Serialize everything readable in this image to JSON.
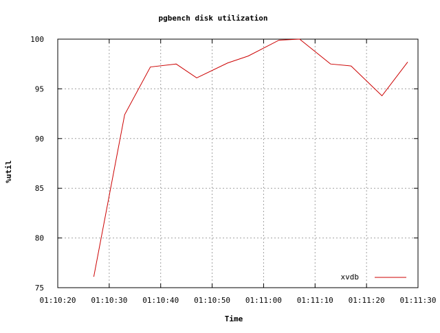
{
  "chart_data": {
    "type": "line",
    "title": "pgbench disk utilization",
    "xlabel": "Time",
    "ylabel": "%util",
    "x_tick_labels": [
      "01:10:20",
      "01:10:30",
      "01:10:40",
      "01:10:50",
      "01:11:00",
      "01:11:10",
      "01:11:20",
      "01:11:30"
    ],
    "y_tick_labels": [
      "75",
      "80",
      "85",
      "90",
      "95",
      "100"
    ],
    "x_ticks_seconds": [
      0,
      10,
      20,
      30,
      40,
      50,
      60,
      70
    ],
    "y_ticks": [
      75,
      80,
      85,
      90,
      95,
      100
    ],
    "xlim": [
      "01:10:20",
      "01:11:30"
    ],
    "ylim": [
      75,
      100
    ],
    "grid": true,
    "legend_position": "bottom-right",
    "series": [
      {
        "name": "xvdb",
        "color": "#cc0000",
        "x": [
          "01:10:27",
          "01:10:33",
          "01:10:38",
          "01:10:43",
          "01:10:47",
          "01:10:53",
          "01:10:57",
          "01:11:03",
          "01:11:07",
          "01:11:13",
          "01:11:17",
          "01:11:23",
          "01:11:28"
        ],
        "y": [
          76.1,
          92.4,
          97.2,
          97.5,
          96.1,
          97.6,
          98.3,
          99.9,
          100.0,
          97.5,
          97.3,
          94.3,
          97.7
        ]
      }
    ]
  }
}
